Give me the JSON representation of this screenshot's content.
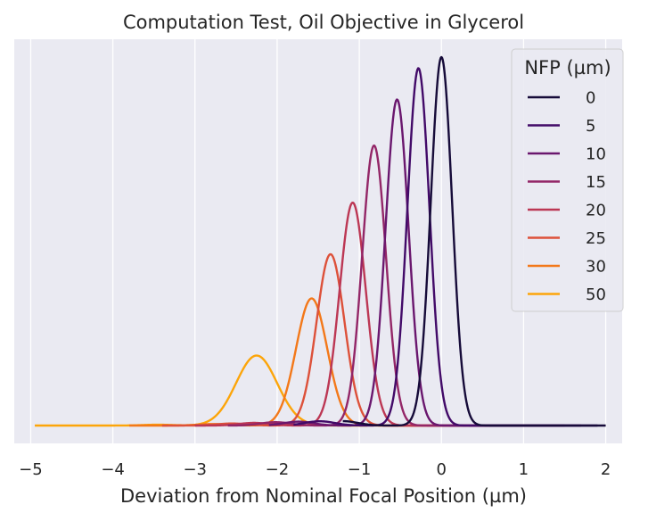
{
  "chart_data": {
    "type": "line",
    "title": "Computation Test, Oil Objective in Glycerol",
    "xlabel": "Deviation from Nominal Focal Position (µm)",
    "ylabel": "",
    "xlim": [
      -5.2,
      2.2
    ],
    "ylim": [
      0,
      1.05
    ],
    "xticks": [
      -5,
      -4,
      -3,
      -2,
      -1,
      0,
      1,
      2
    ],
    "xtick_labels": [
      "−5",
      "−4",
      "−3",
      "−2",
      "−1",
      "0",
      "1",
      "2"
    ],
    "yticks_visible": false,
    "grid": true,
    "background": "#eaeaf2",
    "grid_color": "#ffffff",
    "legend": {
      "title": "NFP (µm)",
      "placement": "top-right"
    },
    "series": [
      {
        "name": "0",
        "color": "#160b39",
        "x_range": [
          -1.2,
          2.0
        ],
        "peak_x": 0.0,
        "peak_y": 1.0,
        "width": 0.13
      },
      {
        "name": "5",
        "color": "#420a68",
        "x_range": [
          -1.8,
          1.9
        ],
        "peak_x": -0.28,
        "peak_y": 0.97,
        "width": 0.135
      },
      {
        "name": "10",
        "color": "#6a176e",
        "x_range": [
          -2.1,
          1.7
        ],
        "peak_x": -0.54,
        "peak_y": 0.885,
        "width": 0.14
      },
      {
        "name": "15",
        "color": "#932667",
        "x_range": [
          -2.6,
          1.5
        ],
        "peak_x": -0.82,
        "peak_y": 0.76,
        "width": 0.145
      },
      {
        "name": "20",
        "color": "#bc3754",
        "x_range": [
          -3.0,
          1.2
        ],
        "peak_x": -1.08,
        "peak_y": 0.605,
        "width": 0.16
      },
      {
        "name": "25",
        "color": "#dd513a",
        "x_range": [
          -3.4,
          0.6
        ],
        "peak_x": -1.35,
        "peak_y": 0.465,
        "width": 0.17
      },
      {
        "name": "30",
        "color": "#f37819",
        "x_range": [
          -3.8,
          0.3
        ],
        "peak_x": -1.58,
        "peak_y": 0.345,
        "width": 0.19
      },
      {
        "name": "50",
        "color": "#fca50a",
        "x_range": [
          -4.95,
          -0.9
        ],
        "peak_x": -2.25,
        "peak_y": 0.19,
        "width": 0.25
      }
    ]
  }
}
